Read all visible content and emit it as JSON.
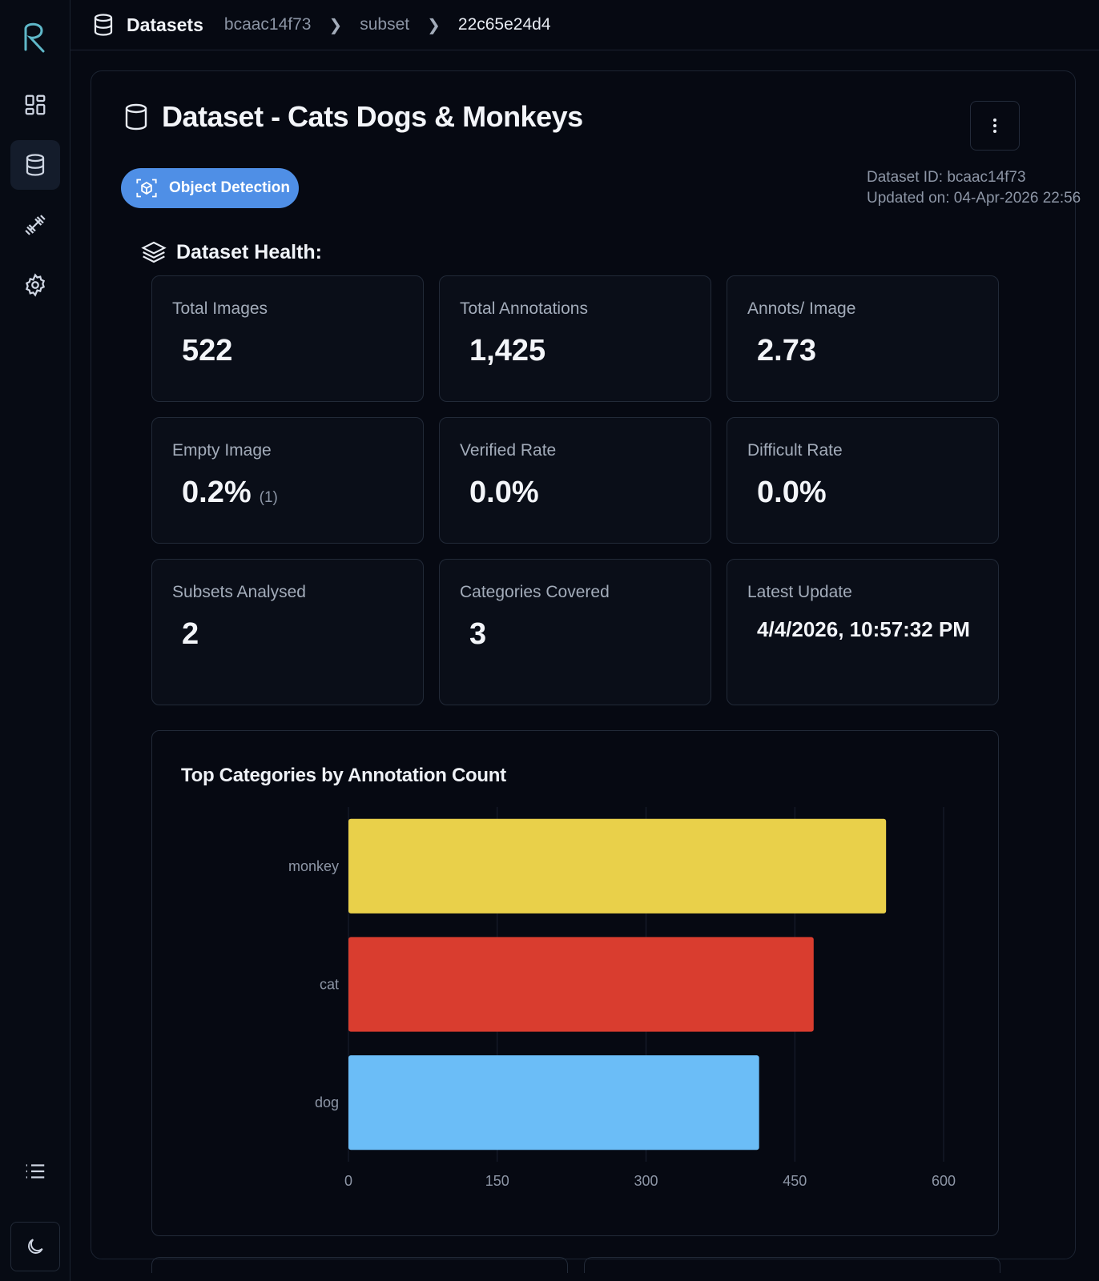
{
  "breadcrumb": {
    "root": "Datasets",
    "items": [
      "bcaac14f73",
      "subset",
      "22c65e24d4"
    ]
  },
  "page": {
    "title": "Dataset - Cats Dogs & Monkeys",
    "type_badge": "Object Detection",
    "dataset_id": "Dataset ID: bcaac14f73",
    "updated_on": "Updated on: 04-Apr-2026 22:56"
  },
  "health": {
    "title": "Dataset Health:",
    "cards": [
      {
        "label": "Total Images",
        "value": "522"
      },
      {
        "label": "Total Annotations",
        "value": "1,425"
      },
      {
        "label": "Annots/ Image",
        "value": "2.73"
      },
      {
        "label": "Empty Image",
        "value": "0.2%",
        "sub": "(1)"
      },
      {
        "label": "Verified Rate",
        "value": "0.0%"
      },
      {
        "label": "Difficult Rate",
        "value": "0.0%"
      },
      {
        "label": "Subsets Analysed",
        "value": "2"
      },
      {
        "label": "Categories Covered",
        "value": "3"
      },
      {
        "label": "Latest Update",
        "value": "4/4/2026, 10:57:32 PM"
      }
    ]
  },
  "chart_data": {
    "type": "bar",
    "orientation": "horizontal",
    "title": "Top Categories by Annotation Count",
    "categories": [
      "monkey",
      "cat",
      "dog"
    ],
    "values": [
      542,
      469,
      414
    ],
    "colors": [
      "#e9d04a",
      "#d93d2f",
      "#6bbdf7"
    ],
    "xlim": [
      0,
      600
    ],
    "xticks": [
      "0",
      "150",
      "300",
      "450",
      "600"
    ],
    "grid": true
  }
}
